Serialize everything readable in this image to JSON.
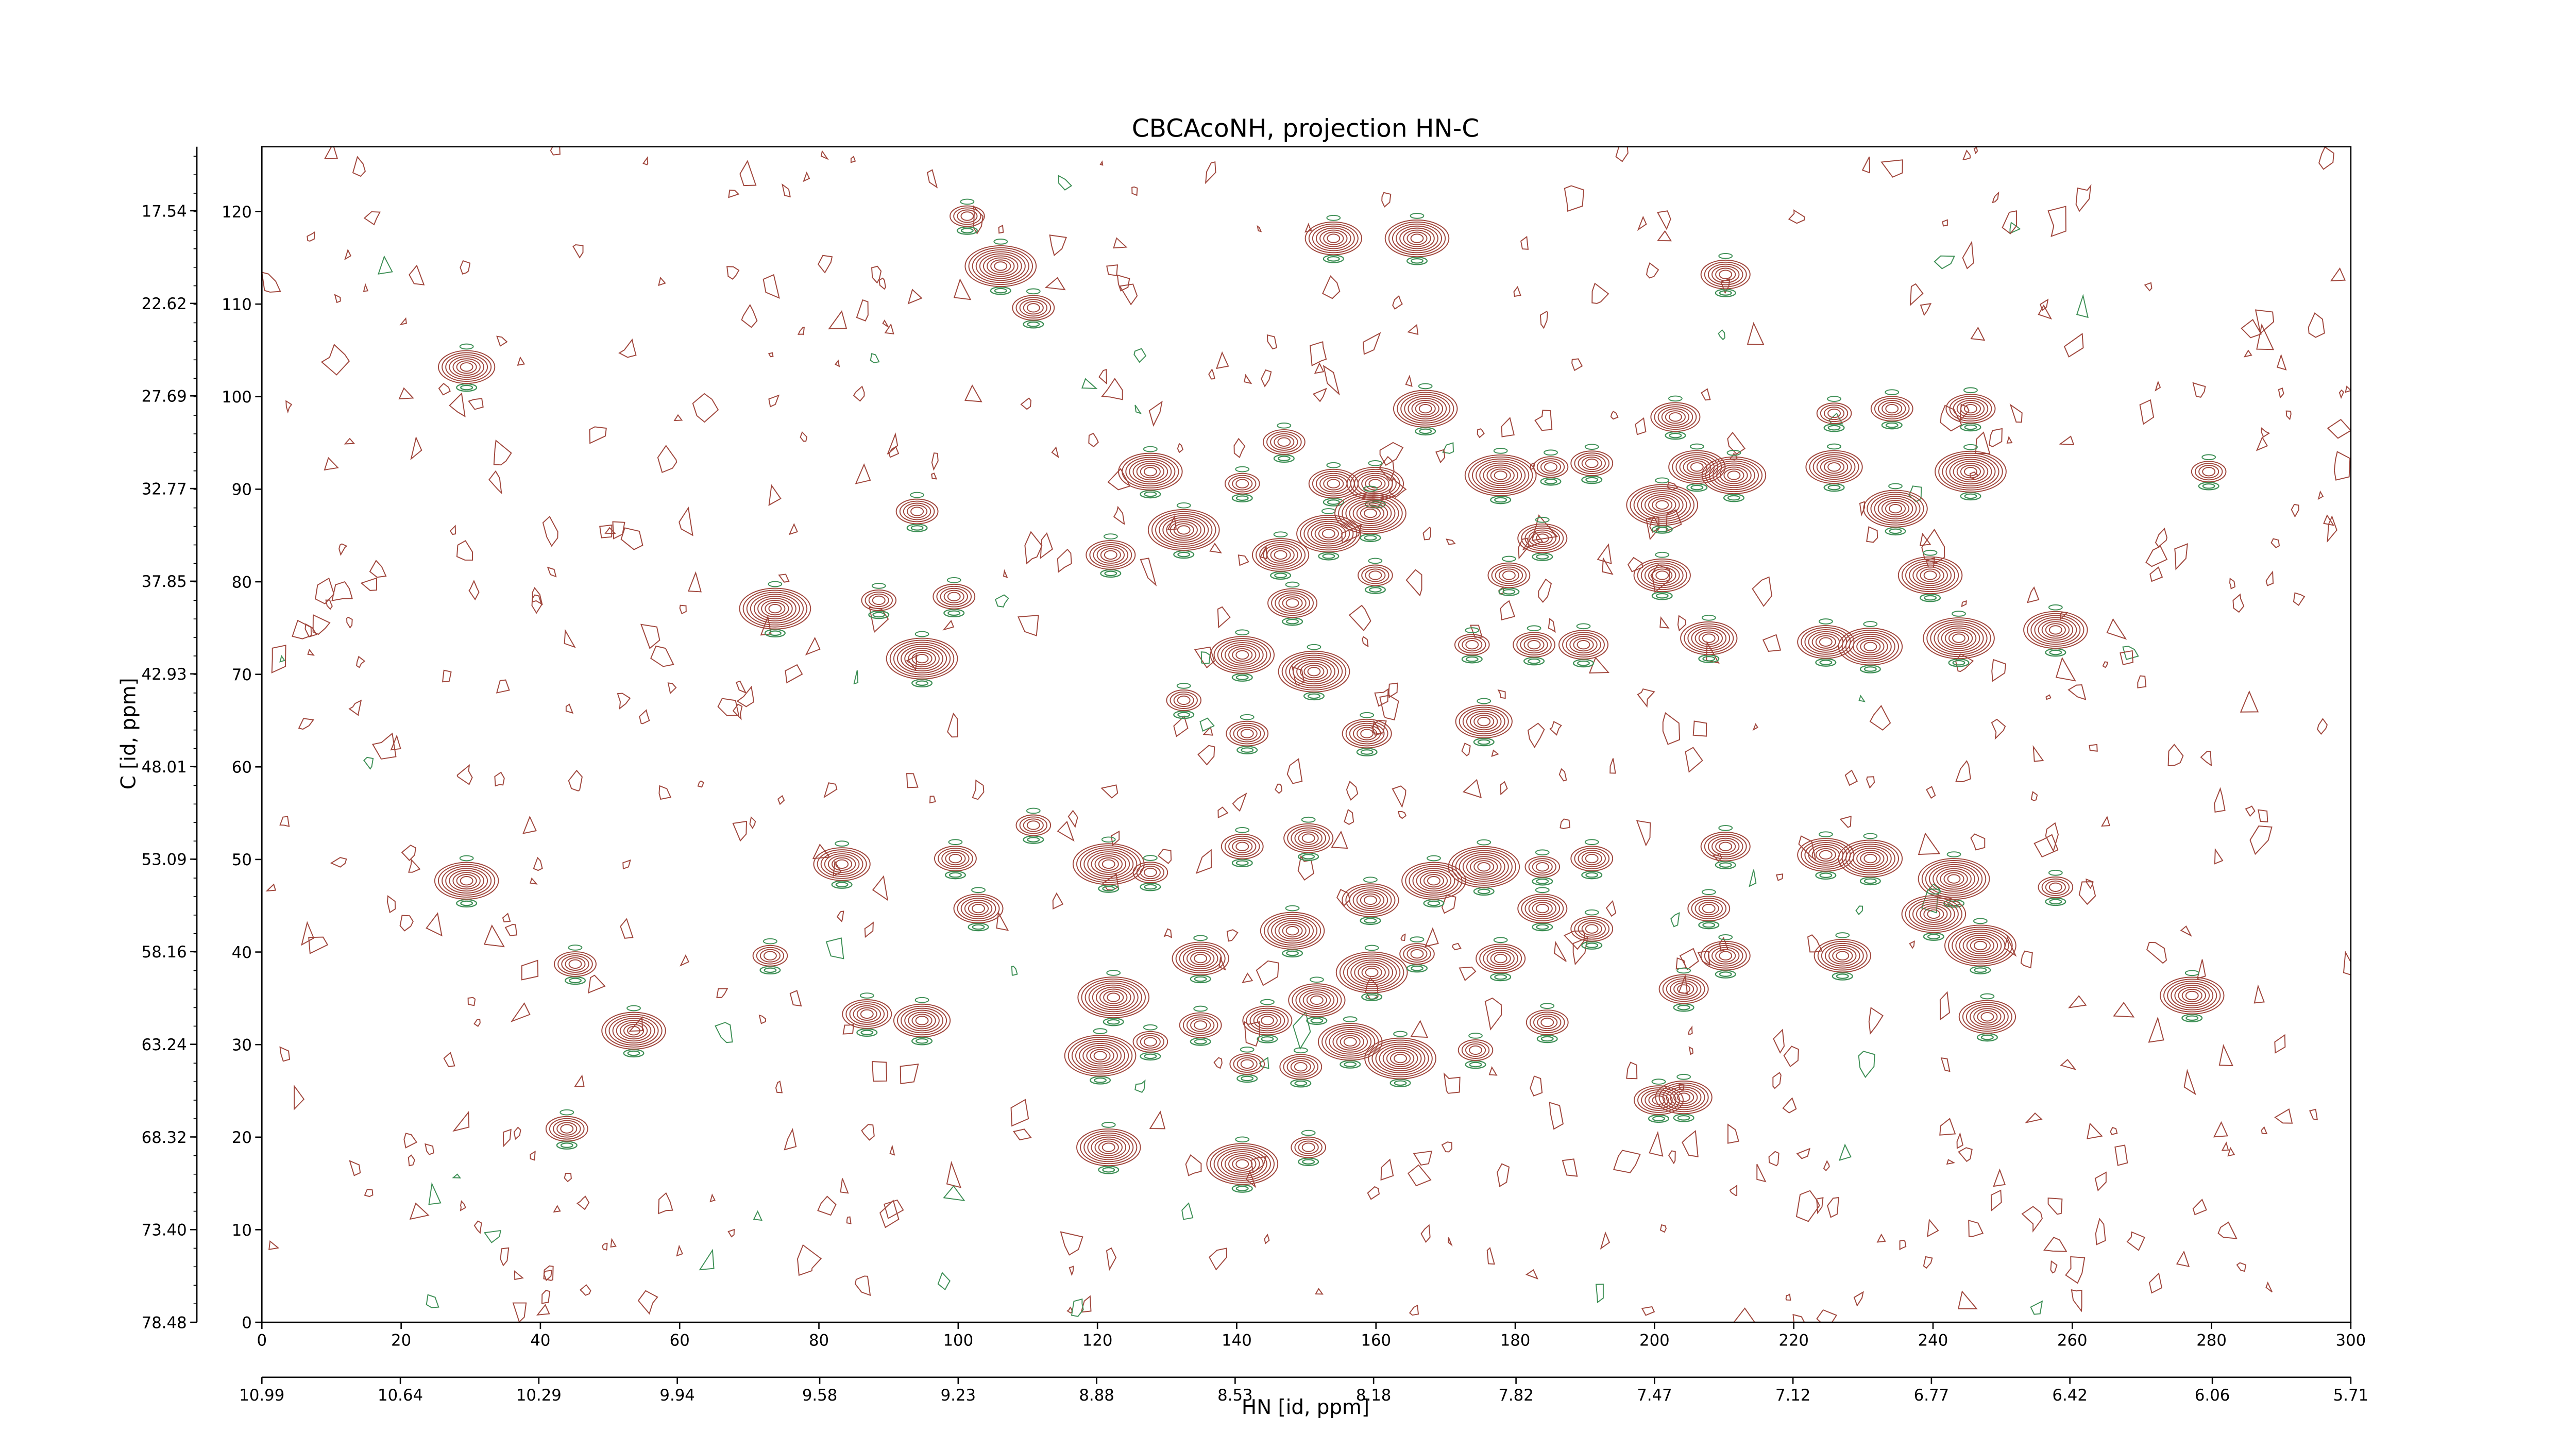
{
  "chart_data": {
    "type": "contour",
    "title": "CBCAcoNH, projection HN-C",
    "xlabel": "HN [id, ppm]",
    "ylabel": "C [id, ppm]",
    "color": "#a0463c",
    "negative_color": "#3d8f55",
    "xlim": [
      0,
      300
    ],
    "xticks": [
      0,
      20,
      40,
      60,
      80,
      100,
      120,
      140,
      160,
      180,
      200,
      220,
      240,
      260,
      280,
      300
    ],
    "ylim": [
      0,
      127
    ],
    "yticks": [
      0,
      10,
      20,
      30,
      40,
      50,
      60,
      70,
      80,
      90,
      100,
      110,
      120
    ],
    "x2lim": [
      10.99,
      5.71
    ],
    "x2ticks": [
      10.99,
      10.64,
      10.29,
      9.94,
      9.58,
      9.23,
      8.88,
      8.53,
      8.18,
      7.82,
      7.47,
      7.12,
      6.77,
      6.42,
      6.06,
      5.71
    ],
    "y2lim": [
      78.48,
      14.03
    ],
    "y2ticks": [
      78.48,
      {
        "value": 73.4,
        "label": "73.40"
      },
      68.32,
      63.24,
      58.16,
      53.09,
      48.01,
      42.93,
      37.85,
      32.77,
      27.69,
      22.62,
      17.54
    ],
    "x": [
      101.3,
      110.8,
      210.2,
      29.4,
      127.6,
      132.4,
      140.8,
      146.8,
      153.9,
      159.9,
      167.1,
      177.9,
      185.1,
      191.0,
      203.0,
      206.1,
      211.4,
      201.1,
      225.8,
      234.1,
      245.4,
      225.8,
      234.6,
      245.4,
      279.6,
      94.1,
      121.9,
      146.3,
      153.2,
      159.2,
      159.9,
      179.1,
      183.9,
      201.1,
      239.6,
      73.7,
      88.6,
      99.4,
      148.0,
      224.6,
      231.0,
      243.7,
      173.8,
      182.7,
      189.8,
      207.8,
      140.8,
      151.1,
      132.4,
      141.5,
      158.7,
      175.5,
      257.6,
      94.8,
      110.8,
      99.6,
      102.9,
      83.3,
      29.4,
      121.6,
      127.6,
      140.8,
      150.3,
      159.2,
      168.3,
      175.5,
      183.9,
      191.0,
      210.2,
      224.6,
      231.0,
      243.0,
      257.6,
      191.0,
      183.9,
      134.8,
      148.0,
      159.4,
      165.9,
      207.8,
      210.2,
      227.0,
      240.1,
      246.8,
      73.0,
      45.0,
      86.9,
      94.8,
      53.4,
      122.3,
      127.6,
      134.8,
      144.4,
      151.5,
      156.3,
      163.5,
      174.3,
      184.6,
      204.2,
      247.8,
      277.2,
      120.4,
      141.5,
      149.2,
      200.6,
      204.2,
      121.6,
      140.8,
      150.3,
      43.8,
      177.9,
      153.9,
      165.9,
      106.1
    ],
    "y": [
      119.5,
      109.6,
      113.2,
      103.2,
      91.9,
      85.6,
      90.6,
      95.1,
      90.6,
      90.6,
      98.7,
      91.5,
      92.4,
      92.8,
      97.8,
      92.4,
      91.5,
      88.3,
      98.2,
      98.7,
      98.7,
      92.4,
      87.9,
      91.9,
      91.9,
      87.6,
      82.9,
      82.9,
      85.2,
      87.4,
      80.7,
      80.7,
      84.7,
      80.7,
      80.7,
      77.1,
      78.0,
      78.4,
      77.7,
      73.5,
      73.0,
      73.9,
      73.2,
      73.2,
      73.2,
      73.9,
      72.1,
      70.3,
      67.2,
      63.6,
      63.6,
      64.9,
      74.8,
      71.7,
      53.7,
      50.1,
      44.7,
      49.5,
      47.7,
      49.5,
      48.6,
      51.4,
      52.3,
      45.6,
      47.7,
      49.2,
      49.2,
      50.1,
      51.4,
      50.5,
      50.1,
      47.9,
      47.0,
      42.5,
      44.7,
      39.3,
      42.3,
      37.8,
      39.8,
      44.7,
      39.6,
      39.6,
      44.1,
      40.7,
      39.6,
      38.7,
      33.3,
      32.6,
      31.5,
      35.1,
      30.3,
      32.1,
      32.6,
      34.8,
      30.3,
      28.5,
      29.4,
      32.4,
      36.0,
      33.0,
      35.3,
      28.8,
      27.9,
      27.6,
      24.0,
      24.3,
      18.9,
      17.1,
      18.9,
      20.9,
      39.3,
      117.1,
      117.1,
      114.1
    ]
  }
}
